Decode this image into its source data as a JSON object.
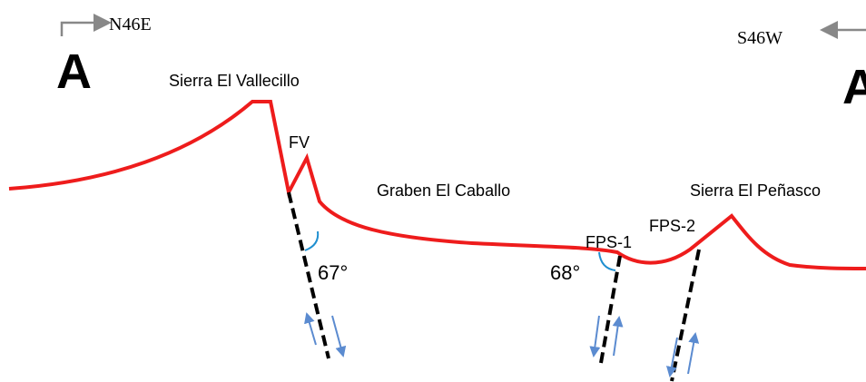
{
  "header": {
    "left_direction": "N46E",
    "left_label": "A",
    "right_direction": "S46W",
    "right_label": "A'"
  },
  "features": {
    "sierra_vallecillo": "Sierra El Vallecillo",
    "graben": "Graben El Caballo",
    "sierra_penasco": "Sierra El Peñasco"
  },
  "faults": [
    {
      "label": "FV",
      "dip": "67°"
    },
    {
      "label": "FPS-1",
      "dip": "68°"
    },
    {
      "label": "FPS-2"
    }
  ]
}
